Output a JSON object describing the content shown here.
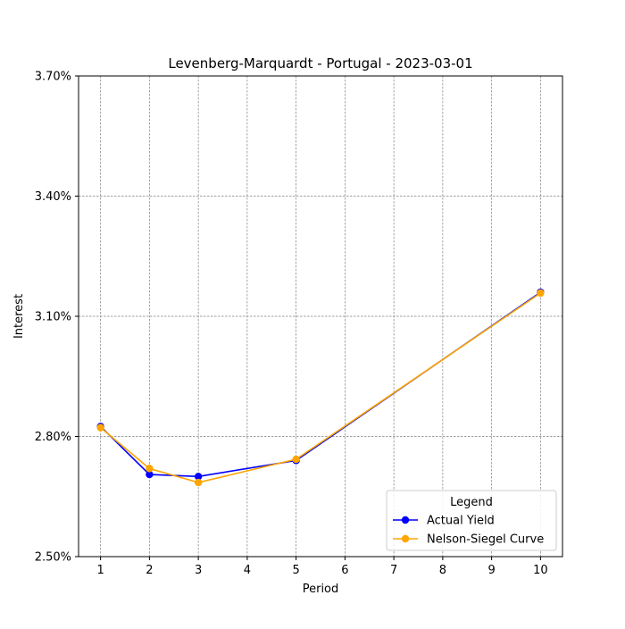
{
  "chart_data": {
    "type": "line",
    "title": "Levenberg-Marquardt - Portugal - 2023-03-01",
    "xlabel": "Period",
    "ylabel": "Interest",
    "x_ticks": [
      1,
      2,
      3,
      4,
      5,
      6,
      7,
      8,
      9,
      10
    ],
    "y_ticks": [
      2.5,
      2.8,
      3.1,
      3.4,
      3.7
    ],
    "y_tick_labels": [
      "2.50%",
      "2.80%",
      "3.10%",
      "3.40%",
      "3.70%"
    ],
    "xlim": [
      0.55,
      10.45
    ],
    "ylim": [
      2.5,
      3.7
    ],
    "grid": true,
    "legend": {
      "title": "Legend",
      "placement": "lower-right"
    },
    "series": [
      {
        "name": "Actual Yield",
        "color": "#0000ff",
        "marker": "circle",
        "x": [
          1,
          2,
          3,
          5,
          10
        ],
        "y": [
          2.825,
          2.705,
          2.7,
          2.74,
          3.16
        ]
      },
      {
        "name": "Nelson-Siegel Curve",
        "color": "#ffa500",
        "marker": "circle",
        "x": [
          1,
          2,
          3,
          5,
          10
        ],
        "y": [
          2.822,
          2.72,
          2.685,
          2.743,
          3.158
        ]
      }
    ]
  }
}
